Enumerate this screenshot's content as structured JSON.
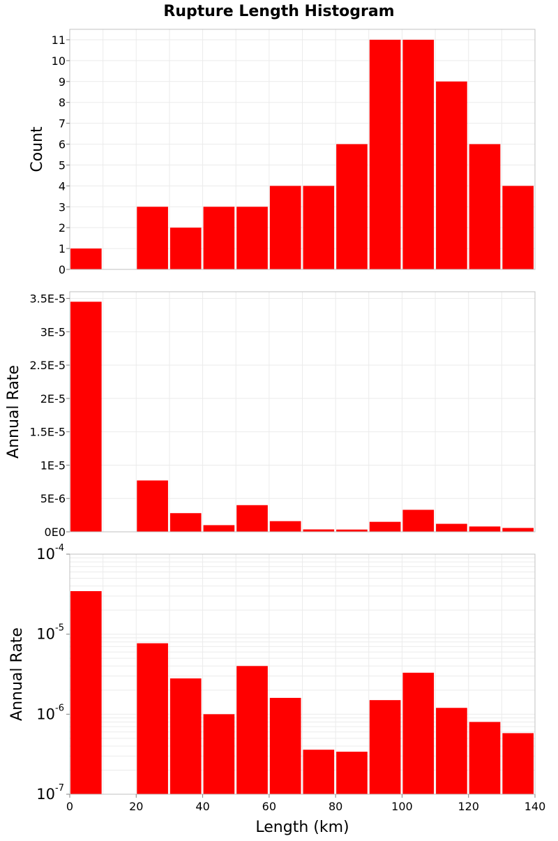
{
  "title": "Rupture Length Histogram",
  "colors": {
    "bar": "#ff0000",
    "grid": "#ebebeb",
    "frame": "#c0c0c0"
  },
  "chart_data": [
    {
      "type": "bar",
      "ylabel": "Count",
      "bin_width": 10,
      "x": [
        5,
        15,
        25,
        35,
        45,
        55,
        65,
        75,
        85,
        95,
        105,
        115,
        125,
        135
      ],
      "values": [
        1,
        0,
        3,
        2,
        3,
        3,
        4,
        4,
        6,
        11,
        11,
        9,
        6,
        4
      ],
      "xlim": [
        0,
        140
      ],
      "ylim": [
        0,
        11.5
      ],
      "yticks": [
        {
          "value": 0,
          "label": "0"
        },
        {
          "value": 1,
          "label": "1"
        },
        {
          "value": 2,
          "label": "2"
        },
        {
          "value": 3,
          "label": "3"
        },
        {
          "value": 4,
          "label": "4"
        },
        {
          "value": 5,
          "label": "5"
        },
        {
          "value": 6,
          "label": "6"
        },
        {
          "value": 7,
          "label": "7"
        },
        {
          "value": 8,
          "label": "8"
        },
        {
          "value": 9,
          "label": "9"
        },
        {
          "value": 10,
          "label": "10"
        },
        {
          "value": 11,
          "label": "11"
        }
      ],
      "grid": true
    },
    {
      "type": "bar",
      "ylabel": "Annual Rate",
      "bin_width": 10,
      "x": [
        5,
        15,
        25,
        35,
        45,
        55,
        65,
        75,
        85,
        95,
        105,
        115,
        125,
        135
      ],
      "values": [
        3.45e-05,
        0,
        7.7e-06,
        2.8e-06,
        1e-06,
        4e-06,
        1.6e-06,
        3.6e-07,
        3.4e-07,
        1.5e-06,
        3.3e-06,
        1.2e-06,
        8e-07,
        5.8e-07
      ],
      "xlim": [
        0,
        140
      ],
      "ylim": [
        0,
        3.6e-05
      ],
      "yticks": [
        {
          "value": 0,
          "label": "0E0"
        },
        {
          "value": 5e-06,
          "label": "5E-6"
        },
        {
          "value": 1e-05,
          "label": "1E-5"
        },
        {
          "value": 1.5e-05,
          "label": "1.5E-5"
        },
        {
          "value": 2e-05,
          "label": "2E-5"
        },
        {
          "value": 2.5e-05,
          "label": "2.5E-5"
        },
        {
          "value": 3e-05,
          "label": "3E-5"
        },
        {
          "value": 3.5e-05,
          "label": "3.5E-5"
        }
      ],
      "grid": true
    },
    {
      "type": "bar",
      "ylabel": "Annual Rate",
      "xlabel": "Length (km)",
      "yscale": "log",
      "bin_width": 10,
      "x": [
        5,
        15,
        25,
        35,
        45,
        55,
        65,
        75,
        85,
        95,
        105,
        115,
        125,
        135
      ],
      "values": [
        3.45e-05,
        0,
        7.7e-06,
        2.8e-06,
        1e-06,
        4e-06,
        1.6e-06,
        3.6e-07,
        3.4e-07,
        1.5e-06,
        3.3e-06,
        1.2e-06,
        8e-07,
        5.8e-07
      ],
      "xlim": [
        0,
        140
      ],
      "ylim": [
        1e-07,
        0.0001
      ],
      "yticks": [
        {
          "value": 1e-07,
          "base": "10",
          "exp": "-7"
        },
        {
          "value": 1e-06,
          "base": "10",
          "exp": "-6"
        },
        {
          "value": 1e-05,
          "base": "10",
          "exp": "-5"
        },
        {
          "value": 0.0001,
          "base": "10",
          "exp": "-4"
        }
      ],
      "xticks": [
        {
          "value": 0,
          "label": "0"
        },
        {
          "value": 20,
          "label": "20"
        },
        {
          "value": 40,
          "label": "40"
        },
        {
          "value": 60,
          "label": "60"
        },
        {
          "value": 80,
          "label": "80"
        },
        {
          "value": 100,
          "label": "100"
        },
        {
          "value": 120,
          "label": "120"
        },
        {
          "value": 140,
          "label": "140"
        }
      ],
      "grid": true
    }
  ]
}
